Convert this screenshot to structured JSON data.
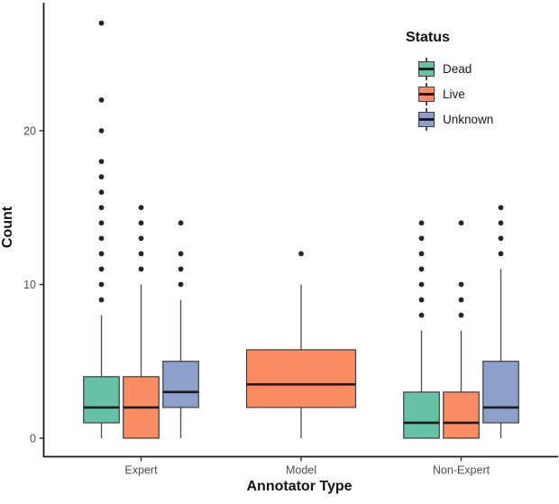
{
  "chart_data": {
    "type": "boxplot",
    "title": "",
    "xlabel": "Annotator Type",
    "ylabel": "Count",
    "categories": [
      "Expert",
      "Model",
      "Non-Expert"
    ],
    "y_ticks": [
      0,
      10,
      20
    ],
    "ylim": [
      -1,
      28
    ],
    "grid": false,
    "legend": {
      "title": "Status",
      "position": "top-right-inside",
      "entries": [
        {
          "label": "Dead",
          "color": "#66C2A5"
        },
        {
          "label": "Live",
          "color": "#FC8D62"
        },
        {
          "label": "Unknown",
          "color": "#8DA0CB"
        }
      ]
    },
    "series": [
      {
        "name": "Dead",
        "color": "#66C2A5",
        "boxes": [
          {
            "category": "Expert",
            "whisker_low": 0,
            "q1": 1,
            "median": 2,
            "q3": 4,
            "whisker_high": 8,
            "outliers": [
              9,
              10,
              11,
              12,
              13,
              14,
              15,
              16,
              17,
              18,
              20,
              22,
              27
            ]
          },
          {
            "category": "Non-Expert",
            "whisker_low": 0,
            "q1": 0,
            "median": 1,
            "q3": 3,
            "whisker_high": 7,
            "outliers": [
              8,
              9,
              10,
              11,
              12,
              13,
              14
            ]
          }
        ]
      },
      {
        "name": "Live",
        "color": "#FC8D62",
        "boxes": [
          {
            "category": "Expert",
            "whisker_low": 0,
            "q1": 0,
            "median": 2,
            "q3": 4,
            "whisker_high": 10,
            "outliers": [
              11,
              12,
              13,
              14,
              15
            ]
          },
          {
            "category": "Model",
            "whisker_low": 0,
            "q1": 2,
            "median": 3.5,
            "q3": 5.75,
            "whisker_high": 10,
            "outliers": [
              12
            ],
            "full_width": true
          },
          {
            "category": "Non-Expert",
            "whisker_low": 0,
            "q1": 0,
            "median": 1,
            "q3": 3,
            "whisker_high": 7,
            "outliers": [
              8,
              9,
              10,
              14
            ]
          }
        ]
      },
      {
        "name": "Unknown",
        "color": "#8DA0CB",
        "boxes": [
          {
            "category": "Expert",
            "whisker_low": 0,
            "q1": 2,
            "median": 3,
            "q3": 5,
            "whisker_high": 9,
            "outliers": [
              10,
              11,
              12,
              14
            ]
          },
          {
            "category": "Non-Expert",
            "whisker_low": 0,
            "q1": 1,
            "median": 2,
            "q3": 5,
            "whisker_high": 11,
            "outliers": [
              12,
              13,
              14,
              15
            ]
          }
        ]
      }
    ],
    "style": {
      "box_border": "#3C3C3C",
      "median_color": "#1A1A1A",
      "whisker_color": "#4A4A4A",
      "outlier_color": "#262626",
      "axis_line_color": "#1A1A1A",
      "tick_label_color": "#4D4D4D",
      "axis_title_color": "#111111",
      "background": "#FFFFFF"
    }
  }
}
